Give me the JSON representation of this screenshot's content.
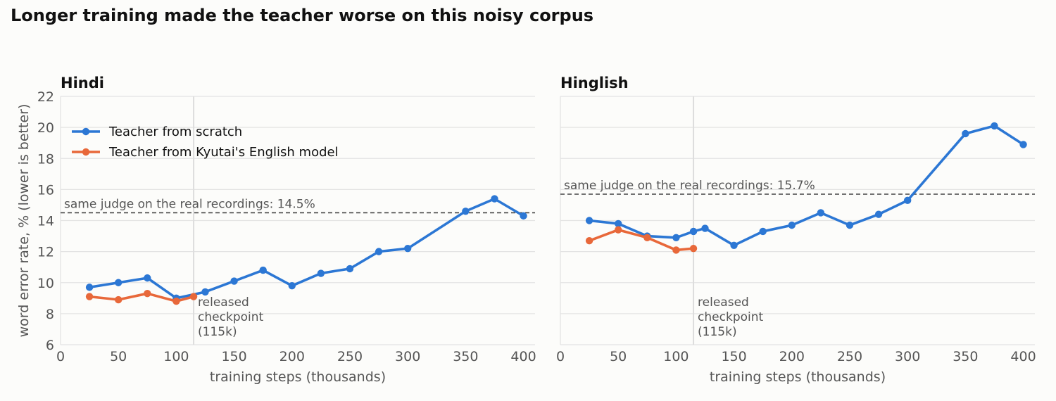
{
  "figure": {
    "title": "Longer training made the teacher worse on this noisy corpus"
  },
  "colors": {
    "scratch": "#2c77d4",
    "kyutai": "#e8683a",
    "grid": "#e3e3e3",
    "reference_line": "#444444",
    "release_line": "#dddddd",
    "annotation_text": "#555555"
  },
  "chart_data": [
    {
      "type": "line",
      "title": "Hindi",
      "xlabel": "training steps (thousands)",
      "ylabel": "word error rate, % (lower is better)",
      "xlim": [
        0,
        410
      ],
      "ylim": [
        6,
        22
      ],
      "xticks": [
        0,
        50,
        100,
        150,
        200,
        250,
        300,
        350,
        400
      ],
      "yticks": [
        6,
        8,
        10,
        12,
        14,
        16,
        18,
        20,
        22
      ],
      "grid": "horizontal",
      "legend": {
        "placement": "top-left",
        "entries": [
          "Teacher from scratch",
          "Teacher from Kyutai's English model"
        ]
      },
      "series": [
        {
          "name": "Teacher from scratch",
          "color": "scratch",
          "x": [
            25,
            50,
            75,
            100,
            125,
            150,
            175,
            200,
            225,
            250,
            275,
            300,
            350,
            375,
            400
          ],
          "y": [
            9.7,
            10.0,
            10.3,
            9.0,
            9.4,
            10.1,
            10.8,
            9.8,
            10.6,
            10.9,
            12.0,
            12.2,
            14.6,
            15.4,
            14.3
          ]
        },
        {
          "name": "Teacher from Kyutai's English model",
          "color": "kyutai",
          "x": [
            25,
            50,
            75,
            100,
            115
          ],
          "y": [
            9.1,
            8.9,
            9.3,
            8.8,
            9.1
          ]
        }
      ],
      "reference_line": {
        "y": 14.5,
        "label": "same judge on the real recordings: 14.5%"
      },
      "release_marker": {
        "x": 115,
        "label_lines": [
          "released",
          "checkpoint",
          "(115k)"
        ]
      }
    },
    {
      "type": "line",
      "title": "Hinglish",
      "xlabel": "training steps (thousands)",
      "ylabel": "",
      "xlim": [
        0,
        410
      ],
      "ylim": [
        6,
        22
      ],
      "xticks": [
        0,
        50,
        100,
        150,
        200,
        250,
        300,
        350,
        400
      ],
      "yticks": [
        6,
        8,
        10,
        12,
        14,
        16,
        18,
        20,
        22
      ],
      "grid": "horizontal",
      "series": [
        {
          "name": "Teacher from scratch",
          "color": "scratch",
          "x": [
            25,
            50,
            75,
            100,
            115,
            125,
            150,
            175,
            200,
            225,
            250,
            275,
            300,
            350,
            375,
            400
          ],
          "y": [
            14.0,
            13.8,
            13.0,
            12.9,
            13.3,
            13.5,
            12.4,
            13.3,
            13.7,
            14.5,
            13.7,
            14.4,
            15.3,
            19.6,
            20.1,
            18.9
          ]
        },
        {
          "name": "Teacher from Kyutai's English model",
          "color": "kyutai",
          "x": [
            25,
            50,
            75,
            100,
            115
          ],
          "y": [
            12.7,
            13.4,
            12.9,
            12.1,
            12.2
          ]
        }
      ],
      "reference_line": {
        "y": 15.7,
        "label": "same judge on the real recordings: 15.7%"
      },
      "release_marker": {
        "x": 115,
        "label_lines": [
          "released",
          "checkpoint",
          "(115k)"
        ]
      }
    }
  ]
}
